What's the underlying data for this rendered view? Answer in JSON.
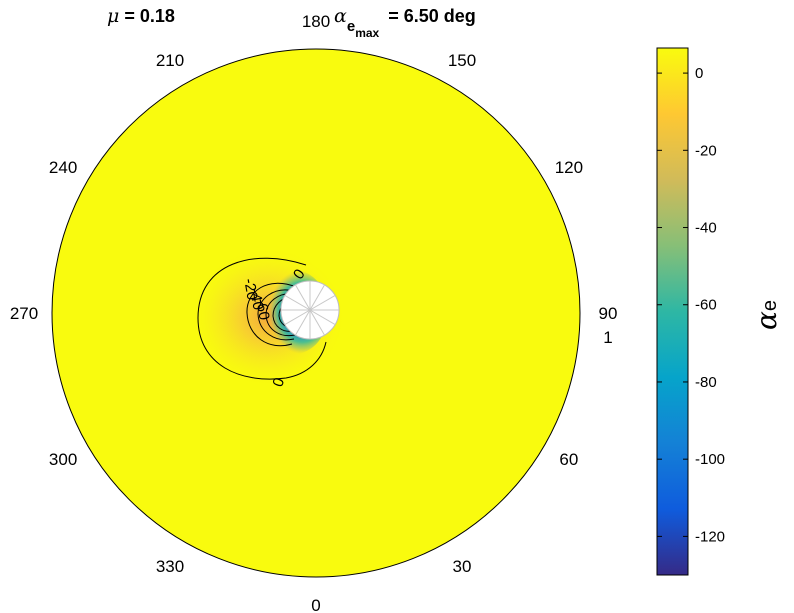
{
  "chart_data": {
    "type": "heatmap",
    "projection": "polar",
    "title": {
      "left_symbol": "μ",
      "left_text": " = 0.18",
      "right_symbol": "α",
      "right_sub": "e",
      "right_subsub": "max",
      "right_text": " = 6.50 deg"
    },
    "angular_ticks": [
      "0",
      "30",
      "60",
      "90",
      "120",
      "150",
      "180",
      "210",
      "240",
      "270",
      "300",
      "330"
    ],
    "angular_tick_degrees": [
      0,
      30,
      60,
      90,
      120,
      150,
      180,
      210,
      240,
      270,
      300,
      330
    ],
    "radial_tick": "1",
    "radial_range": [
      0,
      1
    ],
    "colormap": "parula",
    "colorbar": {
      "label_symbol": "α",
      "label_sub": "e",
      "ticks": [
        "0",
        "-20",
        "-40",
        "-60",
        "-80",
        "-100",
        "-120"
      ],
      "tick_values": [
        0,
        -20,
        -40,
        -60,
        -80,
        -100,
        -120
      ],
      "range": [
        -130,
        6.5
      ]
    },
    "field": {
      "background_value": 4,
      "minimum_value": -130,
      "minimum_location": {
        "azimuth_deg": 270,
        "radius": 0.09
      },
      "hub_radius": 0.11,
      "max_value": 6.5
    },
    "contour_labels": [
      "0",
      "0",
      "-20",
      "-40",
      "-60"
    ],
    "grid": false
  },
  "colors": {
    "parula": [
      "#352a87",
      "#0f5cdd",
      "#1481d6",
      "#06a4ca",
      "#2eb7a4",
      "#87bf77",
      "#d1bb59",
      "#fec832",
      "#f9fb0e"
    ],
    "hub": "#ffffff",
    "hub_spokes": "#c8c8c8",
    "edge": "#000000"
  }
}
